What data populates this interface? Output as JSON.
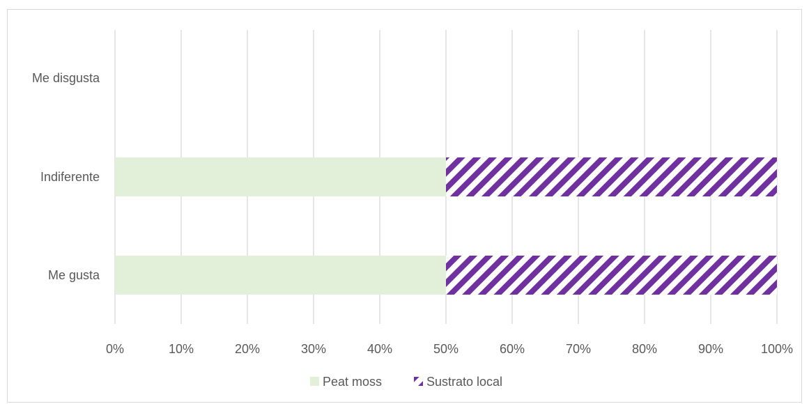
{
  "chart_data": {
    "type": "bar",
    "orientation": "horizontal",
    "stacked": "percent",
    "categories": [
      "Me gusta",
      "Indiferente",
      "Me disgusta"
    ],
    "series": [
      {
        "name": "Peat moss",
        "values": [
          50,
          50,
          0
        ],
        "color": "#e2f0d9",
        "fill": "solid"
      },
      {
        "name": "Sustrato local",
        "values": [
          50,
          50,
          0
        ],
        "color": "#7030a0",
        "fill": "diagonal-stripes"
      }
    ],
    "x_ticks": [
      "0%",
      "10%",
      "20%",
      "30%",
      "40%",
      "50%",
      "60%",
      "70%",
      "80%",
      "90%",
      "100%"
    ],
    "xlim": [
      0,
      100
    ],
    "grid": true,
    "legend_position": "bottom"
  }
}
